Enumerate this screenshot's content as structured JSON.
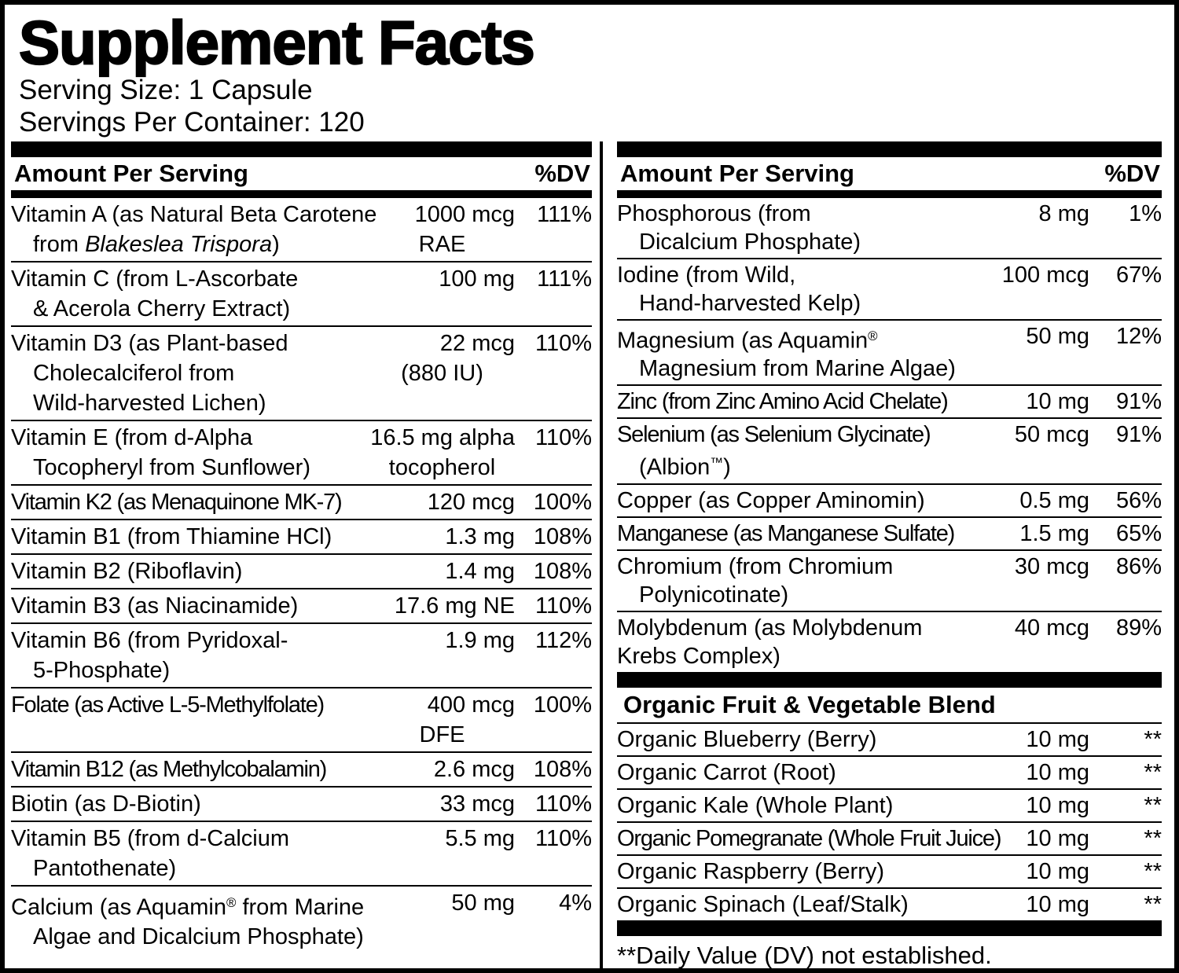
{
  "header": {
    "title": "Supplement Facts",
    "serving_size": "Serving Size: 1 Capsule",
    "servings_per_container": "Servings Per Container: 120"
  },
  "colors": {
    "ink": "#000000",
    "background": "#ffffff"
  },
  "columns": [
    {
      "header": {
        "amount_label": "Amount Per Serving",
        "dv_label": "%DV"
      },
      "rows": [
        {
          "name_lines": [
            {
              "segments": [
                {
                  "t": "Vitamin A (as Natural Beta Carotene"
                }
              ]
            },
            {
              "segments": [
                {
                  "t": "from "
                },
                {
                  "t": "Blakeslea Trispora",
                  "s": "i"
                },
                {
                  "t": ")"
                }
              ],
              "indent": true
            }
          ],
          "amount_lines": [
            "1000 mcg",
            "RAE"
          ],
          "dv": "111%"
        },
        {
          "name_lines": [
            {
              "segments": [
                {
                  "t": "Vitamin C (from L-Ascorbate"
                }
              ]
            },
            {
              "segments": [
                {
                  "t": "& Acerola Cherry Extract)"
                }
              ],
              "indent": true
            }
          ],
          "amount_lines": [
            "100 mg"
          ],
          "dv": "111%"
        },
        {
          "name_lines": [
            {
              "segments": [
                {
                  "t": "Vitamin D3 (as Plant-based"
                }
              ]
            },
            {
              "segments": [
                {
                  "t": "Cholecalciferol from"
                }
              ],
              "indent": true
            },
            {
              "segments": [
                {
                  "t": "Wild-harvested Lichen)"
                }
              ],
              "indent": true
            }
          ],
          "amount_lines": [
            "22 mcg",
            "(880 IU)"
          ],
          "dv": "110%"
        },
        {
          "name_lines": [
            {
              "segments": [
                {
                  "t": "Vitamin E (from d-Alpha"
                }
              ]
            },
            {
              "segments": [
                {
                  "t": "Tocopheryl from Sunflower)"
                }
              ],
              "indent": true
            }
          ],
          "amount_lines": [
            "16.5 mg alpha",
            "tocopherol"
          ],
          "dv": "110%"
        },
        {
          "name_lines": [
            {
              "segments": [
                {
                  "t": "Vitamin K2 (as Menaquinone MK-7)"
                }
              ],
              "tight": true
            }
          ],
          "amount_lines": [
            "120 mcg"
          ],
          "dv": "100%"
        },
        {
          "name_lines": [
            {
              "segments": [
                {
                  "t": "Vitamin B1 (from Thiamine HCl)"
                }
              ]
            }
          ],
          "amount_lines": [
            "1.3 mg"
          ],
          "dv": "108%"
        },
        {
          "name_lines": [
            {
              "segments": [
                {
                  "t": "Vitamin B2 (Riboflavin)"
                }
              ]
            }
          ],
          "amount_lines": [
            "1.4 mg"
          ],
          "dv": "108%"
        },
        {
          "name_lines": [
            {
              "segments": [
                {
                  "t": "Vitamin B3 (as Niacinamide)"
                }
              ]
            }
          ],
          "amount_lines": [
            "17.6 mg NE"
          ],
          "dv": "110%"
        },
        {
          "name_lines": [
            {
              "segments": [
                {
                  "t": "Vitamin B6 (from Pyridoxal-"
                }
              ]
            },
            {
              "segments": [
                {
                  "t": "5-Phosphate)"
                }
              ],
              "indent": true
            }
          ],
          "amount_lines": [
            "1.9 mg"
          ],
          "dv": "112%"
        },
        {
          "name_lines": [
            {
              "segments": [
                {
                  "t": "Folate (as Active L-5-Methylfolate)"
                }
              ],
              "tight": true
            }
          ],
          "amount_lines": [
            "400 mcg",
            "DFE"
          ],
          "dv": "100%"
        },
        {
          "name_lines": [
            {
              "segments": [
                {
                  "t": "Vitamin B12 (as Methylcobalamin)"
                }
              ],
              "tight": true
            }
          ],
          "amount_lines": [
            "2.6 mcg"
          ],
          "dv": "108%"
        },
        {
          "name_lines": [
            {
              "segments": [
                {
                  "t": "Biotin (as D-Biotin)"
                }
              ]
            }
          ],
          "amount_lines": [
            "33 mcg"
          ],
          "dv": "110%"
        },
        {
          "name_lines": [
            {
              "segments": [
                {
                  "t": "Vitamin B5 (from d-Calcium"
                }
              ]
            },
            {
              "segments": [
                {
                  "t": "Pantothenate)"
                }
              ],
              "indent": true
            }
          ],
          "amount_lines": [
            "5.5 mg"
          ],
          "dv": "110%"
        },
        {
          "name_lines": [
            {
              "segments": [
                {
                  "t": "Calcium (as Aquamin"
                },
                {
                  "t": "®",
                  "s": "sup"
                },
                {
                  "t": " from Marine"
                }
              ]
            },
            {
              "segments": [
                {
                  "t": "Algae and Dicalcium Phosphate)"
                }
              ],
              "indent": true
            }
          ],
          "amount_lines": [
            "50 mg"
          ],
          "dv": "4%"
        }
      ]
    },
    {
      "header": {
        "amount_label": "Amount Per Serving",
        "dv_label": "%DV"
      },
      "rows": [
        {
          "name_lines": [
            {
              "segments": [
                {
                  "t": "Phosphorous (from"
                }
              ]
            },
            {
              "segments": [
                {
                  "t": "Dicalcium Phosphate)"
                }
              ],
              "indent": true
            }
          ],
          "amount_lines": [
            "8 mg"
          ],
          "dv": "1%"
        },
        {
          "name_lines": [
            {
              "segments": [
                {
                  "t": "Iodine (from Wild,"
                }
              ]
            },
            {
              "segments": [
                {
                  "t": "Hand-harvested Kelp)"
                }
              ],
              "indent": true
            }
          ],
          "amount_lines": [
            "100 mcg"
          ],
          "dv": "67%"
        },
        {
          "name_lines": [
            {
              "segments": [
                {
                  "t": "Magnesium (as Aquamin"
                },
                {
                  "t": "®",
                  "s": "sup"
                }
              ]
            },
            {
              "segments": [
                {
                  "t": "Magnesium from Marine Algae)"
                }
              ],
              "indent": true
            }
          ],
          "amount_lines": [
            "50 mg"
          ],
          "dv": "12%"
        },
        {
          "name_lines": [
            {
              "segments": [
                {
                  "t": "Zinc (from Zinc Amino Acid Chelate)"
                }
              ],
              "tight": true
            }
          ],
          "amount_lines": [
            "10 mg"
          ],
          "dv": "91%"
        },
        {
          "name_lines": [
            {
              "segments": [
                {
                  "t": "Selenium (as Selenium Glycinate)"
                }
              ],
              "tight": true
            },
            {
              "segments": [
                {
                  "t": "(Albion"
                },
                {
                  "t": "™",
                  "s": "sup"
                },
                {
                  "t": ")"
                }
              ],
              "indent": true
            }
          ],
          "amount_lines": [
            "50 mcg"
          ],
          "dv": "91%"
        },
        {
          "name_lines": [
            {
              "segments": [
                {
                  "t": "Copper (as Copper Aminomin)"
                }
              ]
            }
          ],
          "amount_lines": [
            "0.5 mg"
          ],
          "dv": "56%"
        },
        {
          "name_lines": [
            {
              "segments": [
                {
                  "t": "Manganese (as Manganese Sulfate)"
                }
              ],
              "tight": true
            }
          ],
          "amount_lines": [
            "1.5 mg"
          ],
          "dv": "65%"
        },
        {
          "name_lines": [
            {
              "segments": [
                {
                  "t": "Chromium (from Chromium"
                }
              ]
            },
            {
              "segments": [
                {
                  "t": "Polynicotinate)"
                }
              ],
              "indent": true
            }
          ],
          "amount_lines": [
            "30 mcg"
          ],
          "dv": "86%"
        },
        {
          "name_lines": [
            {
              "segments": [
                {
                  "t": "Molybdenum (as Molybdenum"
                }
              ]
            },
            {
              "segments": [
                {
                  "t": "Krebs Complex)"
                }
              ]
            }
          ],
          "amount_lines": [
            "40 mcg"
          ],
          "dv": "89%"
        }
      ]
    }
  ],
  "blend": {
    "title": "Organic Fruit & Vegetable Blend",
    "rows": [
      {
        "name_lines": [
          {
            "segments": [
              {
                "t": "Organic Blueberry (Berry)"
              }
            ]
          }
        ],
        "amount_lines": [
          "10 mg"
        ],
        "dv": "**"
      },
      {
        "name_lines": [
          {
            "segments": [
              {
                "t": "Organic Carrot (Root)"
              }
            ]
          }
        ],
        "amount_lines": [
          "10 mg"
        ],
        "dv": "**"
      },
      {
        "name_lines": [
          {
            "segments": [
              {
                "t": "Organic Kale (Whole Plant)"
              }
            ]
          }
        ],
        "amount_lines": [
          "10 mg"
        ],
        "dv": "**"
      },
      {
        "name_lines": [
          {
            "segments": [
              {
                "t": "Organic Pomegranate (Whole Fruit Juice)"
              }
            ],
            "tight": true
          }
        ],
        "amount_lines": [
          "10 mg"
        ],
        "dv": "**"
      },
      {
        "name_lines": [
          {
            "segments": [
              {
                "t": "Organic Raspberry (Berry)"
              }
            ]
          }
        ],
        "amount_lines": [
          "10 mg"
        ],
        "dv": "**"
      },
      {
        "name_lines": [
          {
            "segments": [
              {
                "t": "Organic  Spinach (Leaf/Stalk)"
              }
            ]
          }
        ],
        "amount_lines": [
          "10 mg"
        ],
        "dv": "**"
      }
    ]
  },
  "footnote": "**Daily Value (DV) not established."
}
